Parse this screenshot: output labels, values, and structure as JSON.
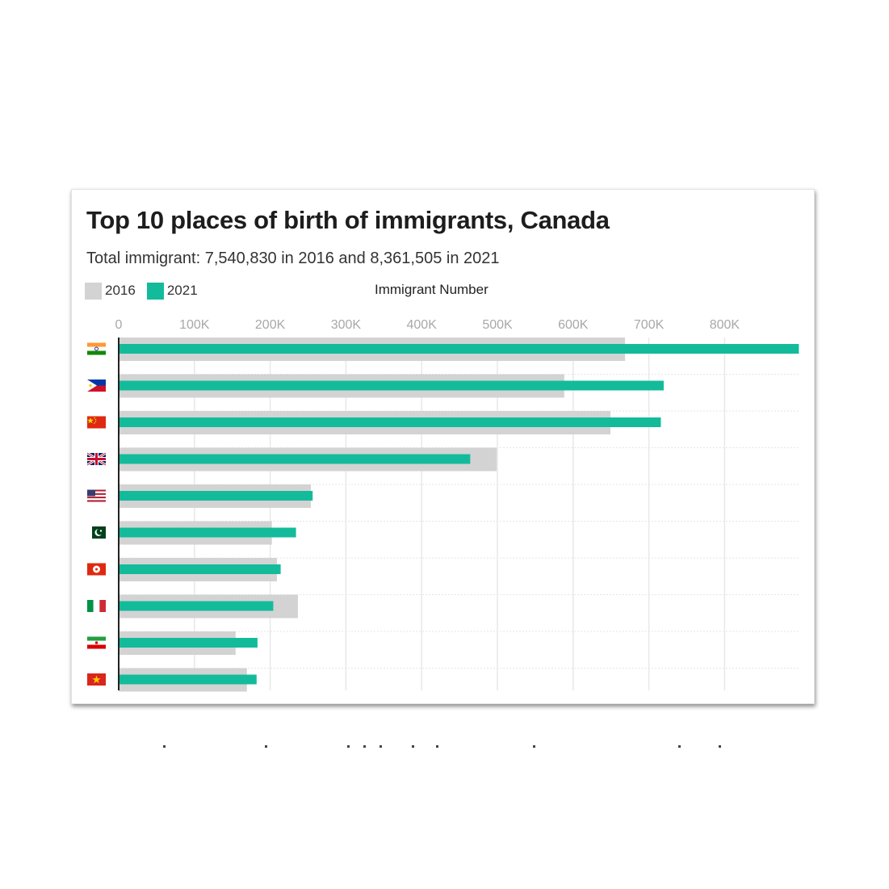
{
  "chart_data": {
    "type": "bar",
    "orientation": "horizontal",
    "title": "Top 10 places of birth of immigrants, Canada",
    "subtitle": "Total immigrant: 7,540,830 in 2016 and 8,361,505 in 2021",
    "xlabel": "Immigrant Number",
    "xlim": [
      0,
      900000
    ],
    "x_ticks": [
      0,
      100000,
      200000,
      300000,
      400000,
      500000,
      600000,
      700000,
      800000
    ],
    "x_tick_labels": [
      "0",
      "100K",
      "200K",
      "300K",
      "400K",
      "500K",
      "600K",
      "700K",
      "800K"
    ],
    "grid": true,
    "legend_position": "top-left",
    "categories": [
      "india-flag",
      "philippines-flag",
      "china-flag",
      "united-kingdom-flag",
      "united-states-flag",
      "pakistan-flag",
      "hong-kong-flag",
      "italy-flag",
      "iran-flag",
      "vietnam-flag"
    ],
    "series": [
      {
        "name": "2016",
        "color": "#d3d3d3",
        "values": [
          668565,
          588305,
          649260,
          499120,
          253715,
          202255,
          208935,
          236635,
          154420,
          169255
        ]
      },
      {
        "name": "2021",
        "color": "#13bb9b",
        "values": [
          898045,
          719580,
          715835,
          464135,
          256085,
          234110,
          213855,
          204070,
          183265,
          182090
        ]
      }
    ]
  },
  "colors": {
    "grid": "#e8e8e8",
    "axis": "#222222",
    "text": "#333333"
  }
}
